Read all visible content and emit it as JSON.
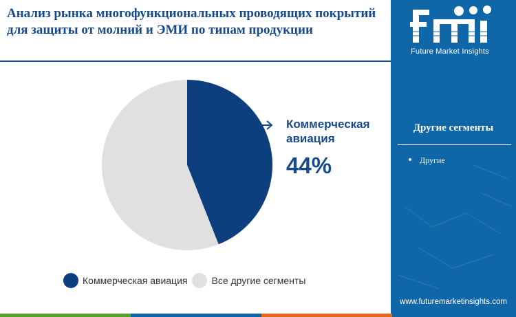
{
  "title": "Анализ рынка многофункциональных проводящих покрытий для защиты от молний и ЭМИ по типам продукции",
  "brand": {
    "logo_letters": "fmi",
    "name": "Future Market Insights",
    "website": "www.futuremarketinsights.com",
    "panel_color": "#0f67a8"
  },
  "side_panel": {
    "header": "Другие сегменты",
    "items": [
      "Другие"
    ]
  },
  "callout": {
    "label": "Коммерческая авиация",
    "value": "44%",
    "arrow_icon": "arrow-right-icon"
  },
  "chart_data": {
    "type": "pie",
    "title": "Анализ рынка многофункциональных проводящих покрытий для защиты от молний и ЭМИ по типам продукции",
    "slices": [
      {
        "label": "Коммерческая авиация",
        "value": 44,
        "color": "#0d3f7f"
      },
      {
        "label": "Все другие сегменты",
        "value": 56,
        "color": "#e0e0e0"
      }
    ],
    "start_angle_deg": 0,
    "direction": "clockwise",
    "legend_position": "bottom"
  },
  "bottom_bar_colors": [
    "#5aa02c",
    "#0f67a8",
    "#e06b1c",
    "#0f67a8"
  ]
}
